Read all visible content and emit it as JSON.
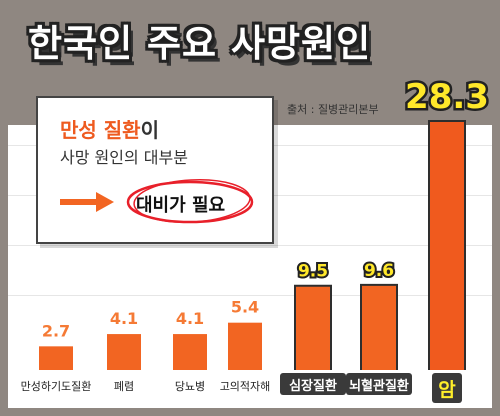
{
  "title": "한국인 주요 사망원인",
  "source": "출처 : 질병관리본부",
  "callout": {
    "highlight": "만성 질환",
    "line1_rest": "이",
    "line2": "사망 원인의 대부분",
    "line3": "대비가 필요"
  },
  "colors": {
    "accent": "#f26522",
    "bar_light": "#f26522",
    "label_yellow": "#ffe82a",
    "dark_bg": "#3a3a3a"
  },
  "chart_data": {
    "type": "bar",
    "categories": [
      "만성하기도질환",
      "폐렴",
      "당뇨병",
      "고의적자해",
      "심장질환",
      "뇌혈관질환",
      "암"
    ],
    "values": [
      2.7,
      4.1,
      4.1,
      5.4,
      9.5,
      9.6,
      28.3
    ],
    "value_labels": [
      "2.7",
      "4.1",
      "4.1",
      "5.4",
      "9.5",
      "9.6",
      "28.3"
    ],
    "highlighted": [
      false,
      false,
      false,
      false,
      true,
      true,
      true
    ],
    "title": "한국인 주요 사망원인",
    "xlabel": "",
    "ylabel": "",
    "ylim": [
      0,
      28.3
    ],
    "grid": true,
    "legend": "none"
  }
}
